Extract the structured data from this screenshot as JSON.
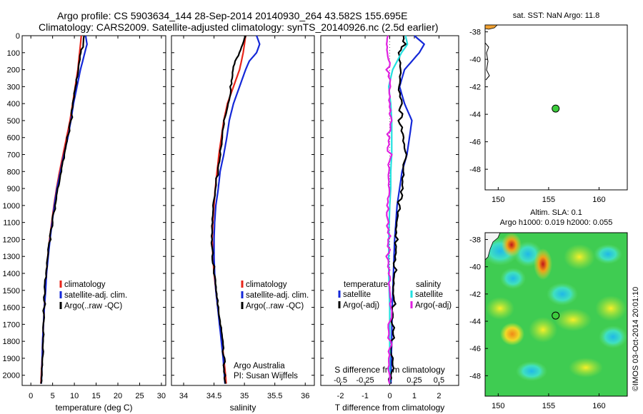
{
  "header": {
    "line1": "Argo profile: CS 5903634_144 28-Sep-2014 20140930_264 43.582S 155.695E",
    "line2": "Climatology: CARS2009. Satellite-adjusted climatology: synTS_20140926.nc (2.5d earlier)"
  },
  "stamp": "©IMOS 03-Oct-2014 20:01:10",
  "colors": {
    "clim": "#e8251a",
    "sat": "#1428d8",
    "argo": "#000000",
    "cyan": "#22e0e0",
    "magenta": "#e020e0"
  },
  "chart_data": [
    {
      "type": "line",
      "id": "temperature",
      "xlabel": "temperature (deg C)",
      "xlim": [
        -2,
        31
      ],
      "ylim": [
        2060,
        0
      ],
      "xticks": [
        0,
        5,
        10,
        15,
        20,
        25,
        30
      ],
      "yticks": [
        0,
        100,
        200,
        300,
        400,
        500,
        600,
        700,
        800,
        900,
        1000,
        1100,
        1200,
        1300,
        1400,
        1500,
        1600,
        1700,
        1800,
        1900,
        2000
      ],
      "legend": [
        "climatology",
        "satellite-adj. clim.",
        "Argo(..raw -QC)"
      ],
      "series": [
        {
          "name": "climatology",
          "color": "clim",
          "depth": [
            0,
            100,
            200,
            300,
            400,
            500,
            600,
            700,
            800,
            900,
            1000,
            1100,
            1200,
            1300,
            1400,
            1500,
            1600,
            1700,
            1800,
            1900,
            2000,
            2050
          ],
          "values": [
            11.6,
            11.2,
            10.8,
            10.2,
            9.6,
            9.0,
            8.2,
            7.4,
            6.6,
            5.9,
            5.3,
            4.8,
            4.3,
            3.9,
            3.6,
            3.3,
            3.1,
            2.9,
            2.7,
            2.6,
            2.4,
            2.3
          ]
        },
        {
          "name": "satellite-adj. clim.",
          "color": "sat",
          "depth": [
            0,
            50,
            100,
            200,
            300,
            400,
            500,
            600,
            700,
            800,
            900,
            1000,
            1100,
            1200,
            1300,
            1400,
            1500,
            1600,
            1700,
            1800,
            1900,
            2000,
            2050
          ],
          "values": [
            12.6,
            12.9,
            12.4,
            11.4,
            10.6,
            9.8,
            9.2,
            8.5,
            7.6,
            6.8,
            6.0,
            5.4,
            4.9,
            4.4,
            4.0,
            3.6,
            3.4,
            3.1,
            2.9,
            2.7,
            2.6,
            2.5,
            2.4
          ]
        },
        {
          "name": "Argo(..raw -QC)",
          "color": "argo",
          "depth": [
            0,
            50,
            100,
            200,
            300,
            400,
            500,
            600,
            700,
            800,
            900,
            1000,
            1100,
            1200,
            1300,
            1400,
            1500,
            1600,
            1700,
            1800,
            1900,
            2000,
            2050
          ],
          "values": [
            12.1,
            12.0,
            11.5,
            11.0,
            10.4,
            9.8,
            9.2,
            8.4,
            7.6,
            6.8,
            6.1,
            5.5,
            4.9,
            4.4,
            4.0,
            3.6,
            3.3,
            3.1,
            2.9,
            2.7,
            2.6,
            2.4,
            2.3
          ]
        }
      ]
    },
    {
      "type": "line",
      "id": "salinity",
      "xlabel": "salinity",
      "xlim": [
        33.8,
        36.15
      ],
      "ylim": [
        2060,
        0
      ],
      "xticks": [
        34,
        34.5,
        35,
        35.5,
        36
      ],
      "xticklabels": [
        "34",
        "34.5",
        "35",
        "35.5",
        "36"
      ],
      "legend": [
        "climatology",
        "satellite-adj. clim.",
        "Argo(..raw -QC)"
      ],
      "annotation": [
        "Argo Australia",
        "PI: Susan Wijffels"
      ],
      "series": [
        {
          "name": "climatology",
          "color": "clim",
          "depth": [
            0,
            100,
            200,
            300,
            400,
            500,
            600,
            700,
            800,
            900,
            1000,
            1100,
            1200,
            1300,
            1400,
            1500,
            1600,
            1700,
            1800,
            1900,
            2000,
            2050
          ],
          "values": [
            35.02,
            34.98,
            34.92,
            34.82,
            34.72,
            34.66,
            34.62,
            34.58,
            34.55,
            34.52,
            34.5,
            34.48,
            34.47,
            34.48,
            34.5,
            34.53,
            34.56,
            34.6,
            34.63,
            34.66,
            34.69,
            34.7
          ]
        },
        {
          "name": "satellite-adj. clim.",
          "color": "sat",
          "depth": [
            0,
            50,
            100,
            150,
            200,
            300,
            400,
            500,
            600,
            700,
            800,
            900,
            1000,
            1100,
            1200,
            1300,
            1400,
            1500,
            1600,
            1700,
            1800,
            1900,
            2000,
            2050
          ],
          "values": [
            35.2,
            35.25,
            35.2,
            35.08,
            35.02,
            34.92,
            34.82,
            34.75,
            34.71,
            34.66,
            34.6,
            34.57,
            34.53,
            34.51,
            34.5,
            34.5,
            34.51,
            34.53,
            34.56,
            34.59,
            34.62,
            34.65,
            34.67,
            34.68
          ]
        },
        {
          "name": "Argo(..raw -QC)",
          "color": "argo",
          "depth": [
            0,
            50,
            100,
            150,
            200,
            250,
            300,
            400,
            500,
            600,
            700,
            800,
            900,
            1000,
            1100,
            1200,
            1300,
            1400,
            1500,
            1600,
            1700,
            1800,
            1900,
            2000,
            2050
          ],
          "values": [
            35.01,
            34.98,
            34.93,
            34.85,
            34.82,
            34.8,
            34.78,
            34.72,
            34.66,
            34.62,
            34.6,
            34.56,
            34.53,
            34.5,
            34.48,
            34.47,
            34.48,
            34.5,
            34.53,
            34.56,
            34.6,
            34.63,
            34.66,
            34.68,
            34.69
          ]
        }
      ]
    },
    {
      "type": "line",
      "id": "difference",
      "xlabel": "T difference from climatology",
      "xlabel_top": "S difference from climatology",
      "xlim": [
        -2.8,
        2.8
      ],
      "ylim": [
        2060,
        0
      ],
      "xticks": [
        -2,
        -1,
        0,
        1,
        2
      ],
      "xticks_top": [
        -0.5,
        -0.25,
        0,
        0.25,
        0.5
      ],
      "xticklabels_top": [
        "-0.5",
        "-0.25",
        "0",
        "0.25",
        "0.5"
      ],
      "legend_titles": [
        "temperature",
        "salinity"
      ],
      "legend": [
        "satellite",
        "Argo(-adj)",
        "satellite",
        "Argo(-adj)"
      ],
      "series": [
        {
          "name": "satellite",
          "color": "sat",
          "depth": [
            0,
            50,
            100,
            200,
            300,
            400,
            500,
            600,
            700,
            800,
            900,
            1000,
            1200,
            1400,
            1600,
            1800,
            2000,
            2050
          ],
          "values": [
            1.0,
            1.4,
            1.2,
            0.6,
            0.4,
            0.6,
            0.9,
            0.8,
            0.7,
            0.5,
            0.4,
            0.3,
            0.2,
            0.15,
            0.1,
            0.08,
            0.05,
            0.05
          ]
        },
        {
          "name": "Argo(-adj)",
          "color": "argo",
          "depth": [
            0,
            50,
            100,
            200,
            300,
            400,
            500,
            600,
            700,
            800,
            900,
            1000,
            1200,
            1400,
            1600,
            1800,
            2000,
            2050
          ],
          "values": [
            0.5,
            0.6,
            0.4,
            0.5,
            0.4,
            0.5,
            0.4,
            0.5,
            0.6,
            0.5,
            0.45,
            0.4,
            0.3,
            0.2,
            0.15,
            0.1,
            0.08,
            0.05
          ]
        },
        {
          "name": "satellite",
          "color": "cyan",
          "depth": [
            0,
            50,
            100,
            200,
            300,
            400,
            500,
            600,
            700,
            800,
            900,
            1000,
            1200,
            1400,
            1600,
            1800,
            2000,
            2050
          ],
          "values": [
            0.16,
            0.18,
            0.12,
            0.03,
            -0.01,
            0.01,
            0.02,
            0.02,
            0.02,
            0.01,
            0.01,
            0.0,
            -0.01,
            -0.01,
            0.0,
            0.0,
            0.0,
            0.0
          ]
        },
        {
          "name": "Argo(-adj)",
          "color": "magenta",
          "depth": [
            0,
            50,
            100,
            200,
            300,
            400,
            500,
            600,
            700,
            800,
            900,
            1000,
            1100,
            1200,
            1300,
            1400,
            1500,
            1600,
            1800,
            2000,
            2050
          ],
          "values": [
            -0.01,
            -0.03,
            -0.01,
            -0.02,
            -0.01,
            -0.01,
            0.0,
            -0.02,
            0.0,
            0.0,
            0.0,
            -0.01,
            -0.01,
            -0.01,
            -0.02,
            -0.02,
            -0.01,
            0.0,
            0.0,
            0.0,
            0.0
          ]
        }
      ]
    },
    {
      "type": "scatter",
      "id": "sst-map",
      "title": "sat. SST: NaN Argo: 11.8",
      "xlim": [
        148.7,
        162.8
      ],
      "ylim": [
        -49.5,
        -37.5
      ],
      "xticks": [
        150,
        155,
        160
      ],
      "yticks": [
        -38,
        -40,
        -42,
        -44,
        -46,
        -48
      ],
      "point": {
        "lon": 155.695,
        "lat": -43.582
      }
    },
    {
      "type": "heatmap",
      "id": "sla-map",
      "title": [
        "Altim. SLA: 0.1",
        "Argo h1000: 0.019 h2000: 0.055"
      ],
      "xlim": [
        148.7,
        162.8
      ],
      "ylim": [
        -49.5,
        -37.5
      ],
      "xticks": [
        150,
        155,
        160
      ],
      "yticks": [
        -38,
        -40,
        -42,
        -44,
        -46,
        -48
      ],
      "point": {
        "lon": 155.695,
        "lat": -43.582
      }
    }
  ]
}
